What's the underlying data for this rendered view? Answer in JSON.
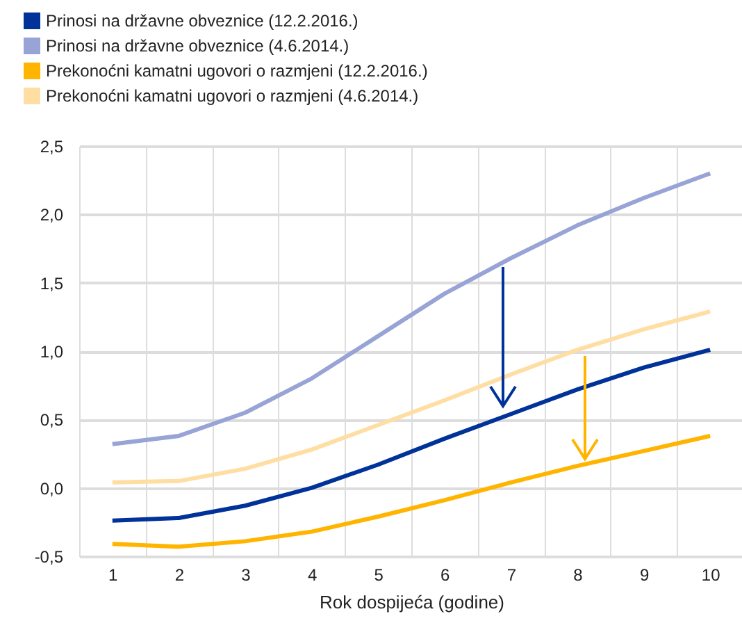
{
  "chart_data": {
    "type": "line",
    "xlabel": "Rok dospijeća (godine)",
    "categories": [
      "1",
      "2",
      "3",
      "4",
      "5",
      "6",
      "7",
      "8",
      "9",
      "10"
    ],
    "series": [
      {
        "name": "Prinosi na državne obveznice (12.2.2016.)",
        "color": "#003299",
        "values": [
          -0.24,
          -0.22,
          -0.13,
          0.0,
          0.17,
          0.36,
          0.54,
          0.72,
          0.88,
          1.01
        ]
      },
      {
        "name": "Prinosi na državne obveznice (4.6.2014.)",
        "color": "#98a3d6",
        "values": [
          0.32,
          0.38,
          0.55,
          0.8,
          1.11,
          1.42,
          1.68,
          1.92,
          2.12,
          2.3
        ]
      },
      {
        "name": "Prekonoćni kamatni ugovori o razmjeni (12.2.2016.)",
        "color": "#ffb400",
        "values": [
          -0.41,
          -0.43,
          -0.39,
          -0.32,
          -0.21,
          -0.09,
          0.04,
          0.16,
          0.27,
          0.38
        ]
      },
      {
        "name": "Prekonoćni kamatni ugovori o razmjeni (4.6.2014.)",
        "color": "#ffdea3",
        "values": [
          0.04,
          0.05,
          0.14,
          0.28,
          0.46,
          0.64,
          0.83,
          1.01,
          1.16,
          1.29
        ]
      }
    ],
    "ylim": [
      -0.5,
      2.5
    ],
    "yticks": [
      {
        "value": -0.5,
        "label": "-0,5"
      },
      {
        "value": 0,
        "label": "0,0"
      },
      {
        "value": 0.5,
        "label": "0,5"
      },
      {
        "value": 1,
        "label": "1,0"
      },
      {
        "value": 1.5,
        "label": "1,5"
      },
      {
        "value": 2,
        "label": "2,0"
      },
      {
        "value": 2.5,
        "label": "2,5"
      }
    ],
    "grid": true,
    "legend": "top left",
    "marker": "none",
    "line_style": "solid"
  }
}
